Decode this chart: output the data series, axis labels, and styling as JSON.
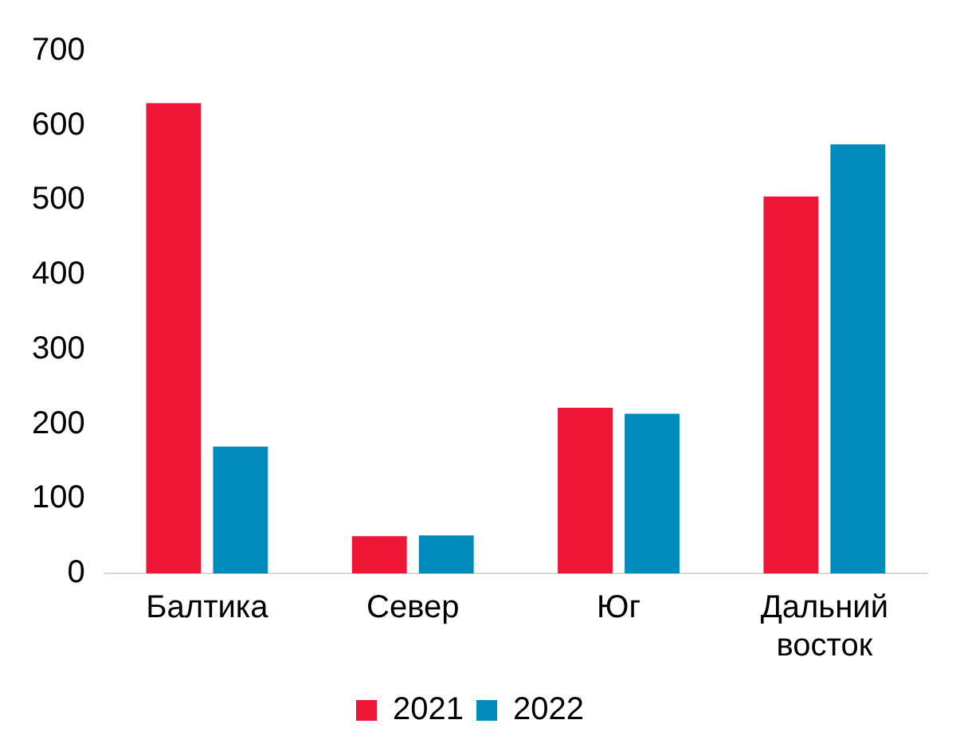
{
  "chart_data": {
    "type": "bar",
    "categories": [
      "Балтика",
      "Север",
      "Юг",
      "Дальний восток"
    ],
    "series": [
      {
        "name": "2021",
        "color": "#ee1537",
        "values": [
          630,
          50,
          222,
          505
        ]
      },
      {
        "name": "2022",
        "color": "#008bbd",
        "values": [
          170,
          51,
          214,
          575
        ]
      }
    ],
    "ylim": [
      0,
      700
    ],
    "yticks": [
      0,
      100,
      200,
      300,
      400,
      500,
      600,
      700
    ],
    "grid": false,
    "legend": "bottom"
  }
}
